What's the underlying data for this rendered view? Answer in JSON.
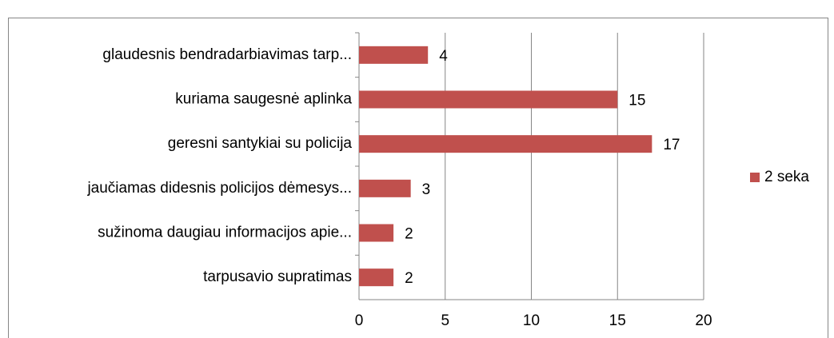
{
  "chart_data": {
    "type": "bar",
    "orientation": "horizontal",
    "categories": [
      "glaudesnis bendradarbiavimas tarp...",
      "kuriama saugesnė aplinka",
      "geresni santykiai su policija",
      "jaučiamas didesnis policijos dėmesys...",
      "sužinoma daugiau informacijos apie...",
      "tarpusavio supratimas"
    ],
    "series": [
      {
        "name": "2 seka",
        "color": "#c0504d",
        "values": [
          4,
          15,
          17,
          3,
          2,
          2
        ]
      }
    ],
    "xlim": [
      0,
      20
    ],
    "xticks": [
      0,
      5,
      10,
      15,
      20
    ],
    "grid": true,
    "legend": "right"
  }
}
